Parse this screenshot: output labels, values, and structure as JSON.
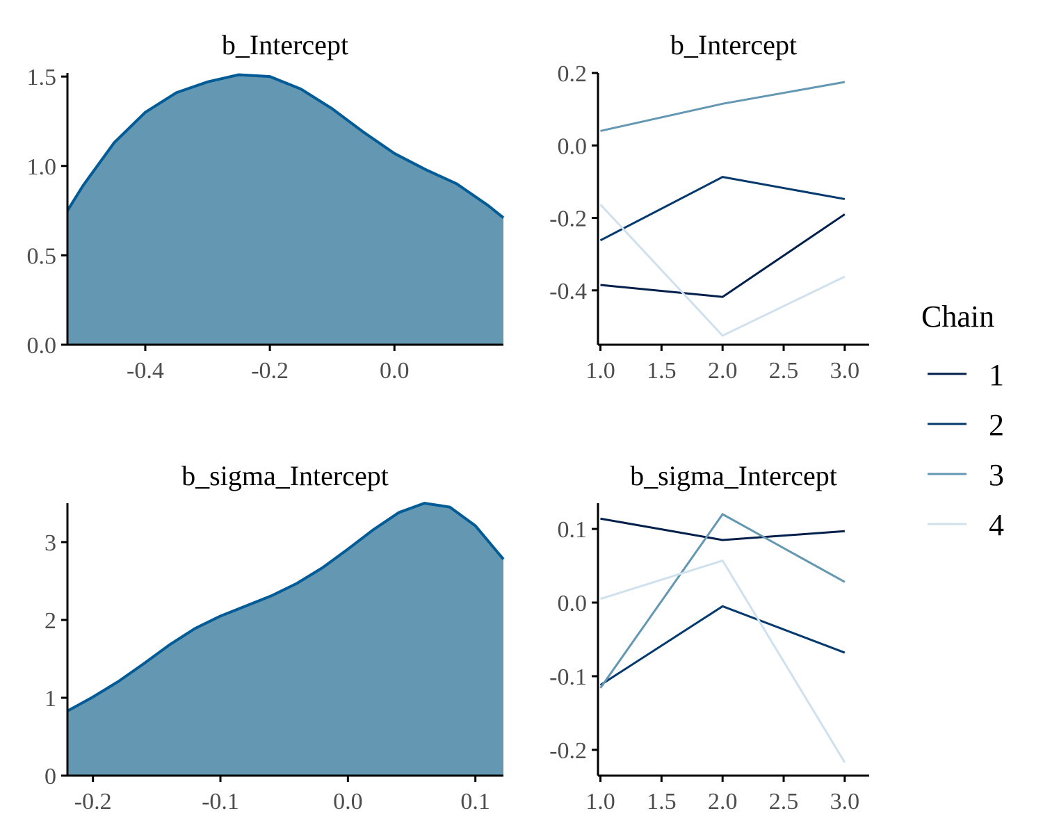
{
  "colors": {
    "chain_1": "#011f4b",
    "chain_2": "#03396c",
    "chain_3": "#6497b1",
    "chain_4": "#d0e1ee",
    "density_fill": "#6497b1",
    "density_line": "#005b96"
  },
  "legend": {
    "title": "Chain",
    "items": [
      "1",
      "2",
      "3",
      "4"
    ]
  },
  "chart_data": [
    {
      "type": "area",
      "title": "b_Intercept",
      "xlabel": "",
      "ylabel": "",
      "xlim": [
        -0.525,
        0.175
      ],
      "ylim": [
        0,
        1.52
      ],
      "xticks": [
        -0.4,
        -0.2,
        0.0
      ],
      "xtick_labels": [
        "-0.4",
        "-0.2",
        "0.0"
      ],
      "yticks": [
        0.0,
        0.5,
        1.0,
        1.5
      ],
      "ytick_labels": [
        "0.0",
        "0.5",
        "1.0",
        "1.5"
      ],
      "grid": false,
      "x": [
        -0.525,
        -0.5,
        -0.45,
        -0.4,
        -0.35,
        -0.3,
        -0.25,
        -0.2,
        -0.15,
        -0.1,
        -0.05,
        0.0,
        0.05,
        0.1,
        0.15,
        0.175
      ],
      "y": [
        0.75,
        0.89,
        1.13,
        1.3,
        1.41,
        1.47,
        1.51,
        1.5,
        1.43,
        1.32,
        1.19,
        1.07,
        0.98,
        0.9,
        0.78,
        0.71
      ]
    },
    {
      "type": "line",
      "title": "b_Intercept",
      "xlabel": "",
      "ylabel": "",
      "xlim": [
        0.98,
        3.2
      ],
      "ylim": [
        -0.55,
        0.2
      ],
      "xticks": [
        1.0,
        1.5,
        2.0,
        2.5,
        3.0
      ],
      "xtick_labels": [
        "1.0",
        "1.5",
        "2.0",
        "2.5",
        "3.0"
      ],
      "yticks": [
        -0.4,
        -0.2,
        0.0,
        0.2
      ],
      "ytick_labels": [
        "-0.4",
        "-0.2",
        "0.0",
        "0.2"
      ],
      "grid": false,
      "x": [
        1,
        2,
        3
      ],
      "series": [
        {
          "name": "1",
          "values": [
            -0.385,
            -0.418,
            -0.19
          ]
        },
        {
          "name": "2",
          "values": [
            -0.262,
            -0.087,
            -0.148
          ]
        },
        {
          "name": "3",
          "values": [
            0.04,
            0.115,
            0.175
          ]
        },
        {
          "name": "4",
          "values": [
            -0.163,
            -0.525,
            -0.362
          ]
        }
      ]
    },
    {
      "type": "area",
      "title": "b_sigma_Intercept",
      "xlabel": "",
      "ylabel": "",
      "xlim": [
        -0.22,
        0.122
      ],
      "ylim": [
        0,
        3.5
      ],
      "xticks": [
        -0.2,
        -0.1,
        0.0,
        0.1
      ],
      "xtick_labels": [
        "-0.2",
        "-0.1",
        "0.0",
        "0.1"
      ],
      "yticks": [
        0,
        1,
        2,
        3
      ],
      "ytick_labels": [
        "0",
        "1",
        "2",
        "3"
      ],
      "grid": false,
      "x": [
        -0.22,
        -0.2,
        -0.18,
        -0.16,
        -0.14,
        -0.12,
        -0.1,
        -0.08,
        -0.06,
        -0.04,
        -0.02,
        0.0,
        0.02,
        0.04,
        0.06,
        0.08,
        0.1,
        0.122
      ],
      "y": [
        0.83,
        1.01,
        1.21,
        1.44,
        1.68,
        1.89,
        2.05,
        2.18,
        2.31,
        2.47,
        2.67,
        2.91,
        3.16,
        3.38,
        3.5,
        3.45,
        3.21,
        2.78
      ]
    },
    {
      "type": "line",
      "title": "b_sigma_Intercept",
      "xlabel": "",
      "ylabel": "",
      "xlim": [
        0.98,
        3.2
      ],
      "ylim": [
        -0.235,
        0.135
      ],
      "xticks": [
        1.0,
        1.5,
        2.0,
        2.5,
        3.0
      ],
      "xtick_labels": [
        "1.0",
        "1.5",
        "2.0",
        "2.5",
        "3.0"
      ],
      "yticks": [
        -0.2,
        -0.1,
        0.0,
        0.1
      ],
      "ytick_labels": [
        "-0.2",
        "-0.1",
        "0.0",
        "0.1"
      ],
      "grid": false,
      "x": [
        1,
        2,
        3
      ],
      "series": [
        {
          "name": "1",
          "values": [
            0.114,
            0.085,
            0.097
          ]
        },
        {
          "name": "2",
          "values": [
            -0.112,
            -0.005,
            -0.068
          ]
        },
        {
          "name": "3",
          "values": [
            -0.116,
            0.12,
            0.028
          ]
        },
        {
          "name": "4",
          "values": [
            0.005,
            0.057,
            -0.217
          ]
        }
      ]
    }
  ]
}
